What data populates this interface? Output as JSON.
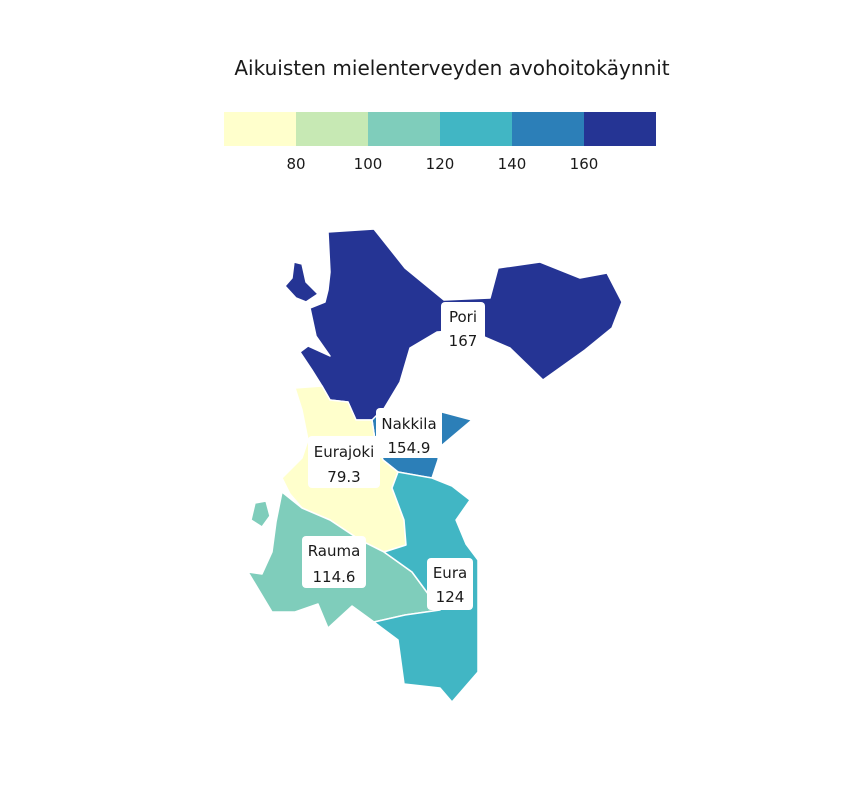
{
  "title": "Aikuisten mielenterveyden avohoitokäynnit",
  "legend": {
    "bins": [
      {
        "color": "#ffffcc"
      },
      {
        "color": "#c7e9b4"
      },
      {
        "color": "#7fcdbb"
      },
      {
        "color": "#41b6c4"
      },
      {
        "color": "#2c7fb8"
      },
      {
        "color": "#253494"
      }
    ],
    "ticks": [
      "80",
      "100",
      "120",
      "140",
      "160"
    ]
  },
  "regions": [
    {
      "name": "Pori",
      "value": "167",
      "color": "#253494"
    },
    {
      "name": "Nakkila",
      "value": "154.9",
      "color": "#2c7fb8"
    },
    {
      "name": "Eurajoki",
      "value": "79.3",
      "color": "#ffffcc"
    },
    {
      "name": "Rauma",
      "value": "114.6",
      "color": "#7fcdbb"
    },
    {
      "name": "Eura",
      "value": "124",
      "color": "#41b6c4"
    }
  ]
}
